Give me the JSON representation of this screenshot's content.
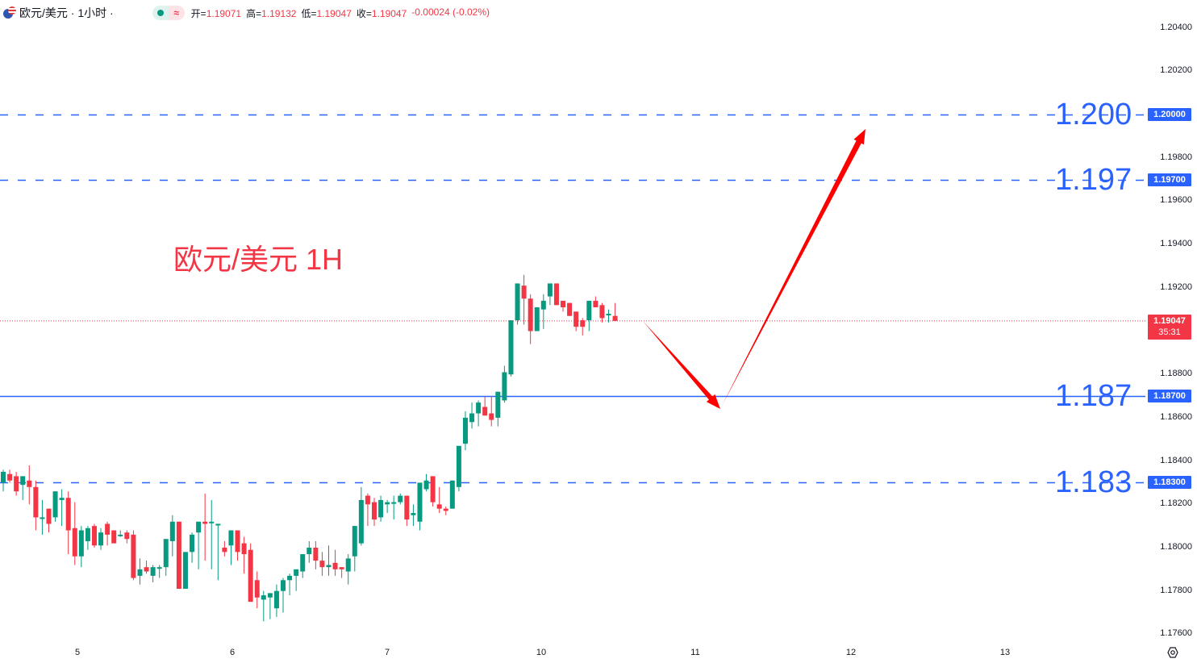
{
  "header": {
    "symbol_title": "欧元/美元 · 1小时 ·",
    "status_dot_color": "#089981",
    "approx_icon": "≈",
    "ohlc": [
      {
        "label": "开=",
        "value": "1.19071"
      },
      {
        "label": "高=",
        "value": "1.19132"
      },
      {
        "label": "低=",
        "value": "1.19047"
      },
      {
        "label": "收=",
        "value": "1.19047"
      }
    ],
    "change": "-0.00024 (-0.02%)"
  },
  "annotation_title": "欧元/美元 1H",
  "price_axis": {
    "ticks": [
      "1.20400",
      "1.20200",
      "1.19800",
      "1.19600",
      "1.19400",
      "1.19200",
      "1.18800",
      "1.18600",
      "1.18400",
      "1.18200",
      "1.18000",
      "1.17800",
      "1.17600"
    ],
    "tags": [
      {
        "value": "1.20000",
        "price": 1.2,
        "color": "#2962ff"
      },
      {
        "value": "1.19700",
        "price": 1.197,
        "color": "#2962ff"
      },
      {
        "value": "1.18700",
        "price": 1.187,
        "color": "#2962ff"
      },
      {
        "value": "1.18300",
        "price": 1.183,
        "color": "#2962ff"
      }
    ],
    "current_price": {
      "value": "1.19047",
      "countdown": "35:31",
      "color": "#f23645"
    }
  },
  "levels": [
    {
      "label": "1.200",
      "price": 1.2,
      "style": "dashed"
    },
    {
      "label": "1.197",
      "price": 1.197,
      "style": "dashed"
    },
    {
      "label": "1.187",
      "price": 1.187,
      "style": "solid"
    },
    {
      "label": "1.183",
      "price": 1.183,
      "style": "dashed"
    }
  ],
  "time_axis": [
    "5",
    "6",
    "7",
    "10",
    "11",
    "12",
    "13"
  ],
  "colors": {
    "up": "#089981",
    "down": "#f23645",
    "level": "#2962ff",
    "arrow": "#ff0000"
  },
  "chart_data": {
    "type": "candlestick",
    "title": "欧元/美元 1H",
    "xlabel": "",
    "ylabel": "",
    "ylim": [
      1.1755,
      1.2055
    ],
    "x_ticks": [
      "5",
      "6",
      "7",
      "10",
      "11",
      "12",
      "13"
    ],
    "y_ticks": [
      1.176,
      1.178,
      1.18,
      1.182,
      1.184,
      1.186,
      1.188,
      1.19,
      1.192,
      1.194,
      1.196,
      1.198,
      1.2,
      1.202,
      1.204
    ],
    "grid": false,
    "horizontal_levels": [
      1.2,
      1.197,
      1.187,
      1.183
    ],
    "current_price": 1.19047,
    "projection_arrows": [
      {
        "from": 1.19047,
        "to": 1.1865,
        "direction": "down"
      },
      {
        "from": 1.1865,
        "to": 1.1995,
        "direction": "up"
      }
    ],
    "candles": [
      [
        1.183,
        1.1836,
        1.1826,
        1.1835
      ],
      [
        1.1834,
        1.1836,
        1.183,
        1.1831
      ],
      [
        1.1833,
        1.1835,
        1.1824,
        1.1826
      ],
      [
        1.1829,
        1.1833,
        1.1822,
        1.1833
      ],
      [
        1.1831,
        1.1838,
        1.182,
        1.1828
      ],
      [
        1.1828,
        1.1831,
        1.1808,
        1.1814
      ],
      [
        1.1814,
        1.1822,
        1.1806,
        1.1814
      ],
      [
        1.1818,
        1.1818,
        1.1807,
        1.1811
      ],
      [
        1.1814,
        1.1825,
        1.1812,
        1.1826
      ],
      [
        1.1822,
        1.1827,
        1.181,
        1.1823
      ],
      [
        1.1823,
        1.1826,
        1.1797,
        1.1808
      ],
      [
        1.1809,
        1.1821,
        1.1792,
        1.1796
      ],
      [
        1.1796,
        1.181,
        1.1791,
        1.1808
      ],
      [
        1.1803,
        1.181,
        1.1799,
        1.1809
      ],
      [
        1.181,
        1.1811,
        1.18,
        1.1801
      ],
      [
        1.1801,
        1.1809,
        1.1799,
        1.1807
      ],
      [
        1.1811,
        1.1812,
        1.1801,
        1.1806
      ],
      [
        1.1808,
        1.1808,
        1.1805,
        1.1802
      ],
      [
        1.1806,
        1.1808,
        1.1805,
        1.1806
      ],
      [
        1.1807,
        1.1808,
        1.1802,
        1.1804
      ],
      [
        1.1806,
        1.1808,
        1.1785,
        1.1786
      ],
      [
        1.1787,
        1.1795,
        1.1783,
        1.179
      ],
      [
        1.1791,
        1.1794,
        1.1788,
        1.1789
      ],
      [
        1.1787,
        1.1792,
        1.1784,
        1.1791
      ],
      [
        1.1791,
        1.1792,
        1.1786,
        1.1791
      ],
      [
        1.1791,
        1.1802,
        1.1787,
        1.1804
      ],
      [
        1.1803,
        1.1815,
        1.1796,
        1.1812
      ],
      [
        1.1812,
        1.1812,
        1.1781,
        1.1781
      ],
      [
        1.1781,
        1.1795,
        1.1781,
        1.1798
      ],
      [
        1.1798,
        1.1807,
        1.1793,
        1.1806
      ],
      [
        1.1807,
        1.1807,
        1.179,
        1.1812
      ],
      [
        1.1812,
        1.1825,
        1.1794,
        1.1811
      ],
      [
        1.1812,
        1.1822,
        1.179,
        1.1812
      ],
      [
        1.1811,
        1.1809,
        1.1785,
        1.1811
      ],
      [
        1.18,
        1.1803,
        1.1796,
        1.1798
      ],
      [
        1.1801,
        1.1805,
        1.1792,
        1.1808
      ],
      [
        1.1808,
        1.1807,
        1.1794,
        1.1798
      ],
      [
        1.1802,
        1.1805,
        1.1788,
        1.1797
      ],
      [
        1.1799,
        1.1802,
        1.1782,
        1.1775
      ],
      [
        1.1785,
        1.1789,
        1.1772,
        1.1777
      ],
      [
        1.1776,
        1.178,
        1.1766,
        1.1778
      ],
      [
        1.1777,
        1.1779,
        1.1767,
        1.1779
      ],
      [
        1.1772,
        1.1783,
        1.1768,
        1.178
      ],
      [
        1.178,
        1.1786,
        1.177,
        1.1785
      ],
      [
        1.1785,
        1.1788,
        1.1778,
        1.1787
      ],
      [
        1.1787,
        1.179,
        1.178,
        1.179
      ],
      [
        1.1789,
        1.1796,
        1.1786,
        1.1797
      ],
      [
        1.1797,
        1.1803,
        1.1793,
        1.18
      ],
      [
        1.18,
        1.1803,
        1.179,
        1.1794
      ],
      [
        1.1794,
        1.1798,
        1.1787,
        1.1791
      ],
      [
        1.1791,
        1.1801,
        1.1787,
        1.1792
      ],
      [
        1.1793,
        1.1799,
        1.1787,
        1.179
      ],
      [
        1.1791,
        1.179,
        1.1786,
        1.179
      ],
      [
        1.1789,
        1.1797,
        1.1783,
        1.1795
      ],
      [
        1.1796,
        1.1798,
        1.1789,
        1.181
      ],
      [
        1.1802,
        1.1828,
        1.1801,
        1.1822
      ],
      [
        1.1824,
        1.1825,
        1.181,
        1.182
      ],
      [
        1.1821,
        1.1823,
        1.181,
        1.1813
      ],
      [
        1.1814,
        1.1824,
        1.1812,
        1.1822
      ],
      [
        1.182,
        1.1822,
        1.1816,
        1.1821
      ],
      [
        1.1821,
        1.1824,
        1.1813,
        1.1821
      ],
      [
        1.1821,
        1.1825,
        1.182,
        1.1824
      ],
      [
        1.1824,
        1.1824,
        1.181,
        1.1813
      ],
      [
        1.1815,
        1.182,
        1.181,
        1.1816
      ],
      [
        1.1812,
        1.183,
        1.1808,
        1.183
      ],
      [
        1.1827,
        1.1834,
        1.1826,
        1.1831
      ],
      [
        1.1833,
        1.1832,
        1.1819,
        1.1821
      ],
      [
        1.182,
        1.1828,
        1.1816,
        1.1818
      ],
      [
        1.1818,
        1.1819,
        1.1815,
        1.1817
      ],
      [
        1.1818,
        1.1829,
        1.1818,
        1.1831
      ],
      [
        1.1828,
        1.1843,
        1.1826,
        1.1847
      ],
      [
        1.1848,
        1.1863,
        1.1845,
        1.186
      ],
      [
        1.1858,
        1.1867,
        1.1855,
        1.1862
      ],
      [
        1.1862,
        1.1868,
        1.1856,
        1.1867
      ],
      [
        1.1865,
        1.187,
        1.1862,
        1.1861
      ],
      [
        1.1862,
        1.187,
        1.1856,
        1.1859
      ],
      [
        1.186,
        1.187,
        1.1856,
        1.1872
      ],
      [
        1.1868,
        1.1884,
        1.1867,
        1.1881
      ],
      [
        1.188,
        1.19,
        1.1879,
        1.1905
      ],
      [
        1.1905,
        1.192,
        1.1903,
        1.1922
      ],
      [
        1.1921,
        1.1926,
        1.1903,
        1.1915
      ],
      [
        1.1915,
        1.1917,
        1.1894,
        1.19
      ],
      [
        1.19,
        1.1911,
        1.19,
        1.1911
      ],
      [
        1.191,
        1.1917,
        1.1901,
        1.1914
      ],
      [
        1.1916,
        1.1922,
        1.1912,
        1.1922
      ],
      [
        1.1922,
        1.192,
        1.1912,
        1.1912
      ],
      [
        1.1914,
        1.1913,
        1.1909,
        1.1911
      ],
      [
        1.1913,
        1.1912,
        1.1907,
        1.1907
      ],
      [
        1.1909,
        1.1908,
        1.19,
        1.1902
      ],
      [
        1.1905,
        1.1906,
        1.1898,
        1.1902
      ],
      [
        1.1905,
        1.1914,
        1.19,
        1.1914
      ],
      [
        1.1914,
        1.1916,
        1.1911,
        1.1911
      ],
      [
        1.1912,
        1.1913,
        1.1904,
        1.1906
      ],
      [
        1.1908,
        1.191,
        1.1904,
        1.1908
      ],
      [
        1.1907,
        1.1913,
        1.1905,
        1.19047
      ]
    ]
  }
}
